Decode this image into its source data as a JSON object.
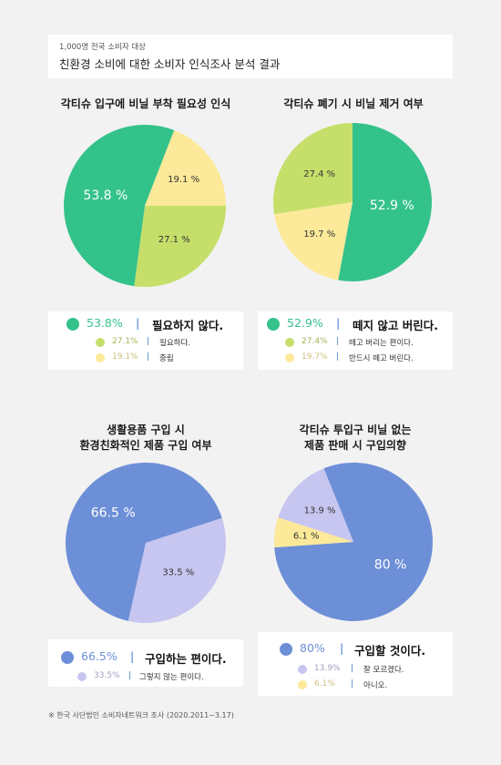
{
  "header": {
    "subtitle": "1,000명 전국 소비자 대상",
    "title": "친환경 소비에 대한 소비자 인식조사 분석 결과"
  },
  "colors": {
    "green": "#34c28b",
    "lime": "#c5df6a",
    "yellow": "#fce99a",
    "blue": "#6d8fd7",
    "lavender": "#c7c6f0",
    "yellow2": "#fce99a",
    "separator": "#3f7bd0"
  },
  "chart_data": [
    {
      "type": "pie",
      "title": "각티슈 입구에 비닐 부착 필요성 인식",
      "series": [
        {
          "label": "필요하지 않다.",
          "value": 53.8,
          "value_label": "53.8%",
          "color": "#34c28b"
        },
        {
          "label": "필요하다.",
          "value": 27.1,
          "value_label": "27.1%",
          "color": "#c5df6a"
        },
        {
          "label": "중립",
          "value": 19.1,
          "value_label": "19.1%",
          "color": "#fce99a"
        }
      ]
    },
    {
      "type": "pie",
      "title": "각티슈 폐기 시 비닐 제거 여부",
      "series": [
        {
          "label": "떼지 않고 버린다.",
          "value": 52.9,
          "value_label": "52.9%",
          "color": "#34c28b"
        },
        {
          "label": "떼고 버리는 편이다.",
          "value": 27.4,
          "value_label": "27.4%",
          "color": "#c5df6a"
        },
        {
          "label": "반드시 떼고 버린다.",
          "value": 19.7,
          "value_label": "19.7%",
          "color": "#fce99a"
        }
      ]
    },
    {
      "type": "pie",
      "title_lines": [
        "생활용품 구입 시",
        "환경친화적인 제품 구입 여부"
      ],
      "series": [
        {
          "label": "구입하는 편이다.",
          "value": 66.5,
          "value_label": "66.5%",
          "color": "#6d8fd7"
        },
        {
          "label": "그렇지 않는 편이다.",
          "value": 33.5,
          "value_label": "33.5%",
          "color": "#c7c6f0"
        }
      ]
    },
    {
      "type": "pie",
      "title_lines": [
        "각티슈 투입구 비닐 없는",
        "제품 판매 시 구입의향"
      ],
      "series": [
        {
          "label": "구입할 것이다.",
          "value": 80,
          "value_label": "80%",
          "color": "#6d8fd7"
        },
        {
          "label": "잘 모르겠다.",
          "value": 13.9,
          "value_label": "13.9%",
          "color": "#c7c6f0"
        },
        {
          "label": "아니오.",
          "value": 6.1,
          "value_label": "6.1%",
          "color": "#fce99a"
        }
      ]
    }
  ],
  "pie_labels": {
    "c1": [
      "53.8 %",
      "27.1 %",
      "19.1 %"
    ],
    "c2": [
      "52.9 %",
      "27.4 %",
      "19.7 %"
    ],
    "c3": [
      "66.5 %",
      "33.5 %"
    ],
    "c4": [
      "80 %",
      "13.9 %",
      "6.1 %"
    ]
  },
  "separator": "|",
  "footnote": "※ 한국 사단법인 소비자네트워크 조사 (2020.2011~3.17)"
}
